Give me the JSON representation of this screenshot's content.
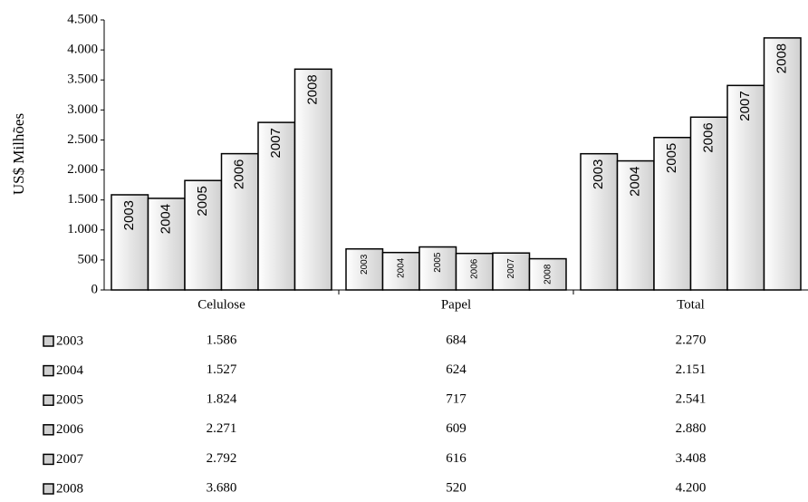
{
  "chart_data": {
    "type": "bar",
    "y_label": "US$ Milhões",
    "categories": [
      "Celulose",
      "Papel",
      "Total"
    ],
    "series": [
      {
        "name": "2003",
        "color": "#d0d0d0",
        "values": [
          1586,
          684,
          2270
        ],
        "value_labels": [
          "1.586",
          "684",
          "2.270"
        ]
      },
      {
        "name": "2004",
        "color": "#d0d0d0",
        "values": [
          1527,
          624,
          2151
        ],
        "value_labels": [
          "1.527",
          "624",
          "2.151"
        ]
      },
      {
        "name": "2005",
        "color": "#d0d0d0",
        "values": [
          1824,
          717,
          2541
        ],
        "value_labels": [
          "1.824",
          "717",
          "2.541"
        ]
      },
      {
        "name": "2006",
        "color": "#d0d0d0",
        "values": [
          2271,
          609,
          2880
        ],
        "value_labels": [
          "2.271",
          "609",
          "2.880"
        ]
      },
      {
        "name": "2007",
        "color": "#d0d0d0",
        "values": [
          2792,
          616,
          3408
        ],
        "value_labels": [
          "2.792",
          "616",
          "3.408"
        ]
      },
      {
        "name": "2008",
        "color": "#d0d0d0",
        "values": [
          3680,
          520,
          4200
        ],
        "value_labels": [
          "3.680",
          "520",
          "4.200"
        ]
      }
    ],
    "ylim": [
      0,
      4500
    ],
    "yticks": [
      0,
      500,
      {
        "value": 1000,
        "label": "1.000"
      },
      {
        "value": 1500,
        "label": "1.500"
      },
      {
        "value": 2000,
        "label": "2.000"
      },
      {
        "value": 2500,
        "label": "2.500"
      },
      {
        "value": 3000,
        "label": "3.000"
      },
      {
        "value": 3500,
        "label": "3.500"
      },
      {
        "value": 4000,
        "label": "4.000"
      },
      {
        "value": 4500,
        "label": "4.500"
      }
    ]
  }
}
